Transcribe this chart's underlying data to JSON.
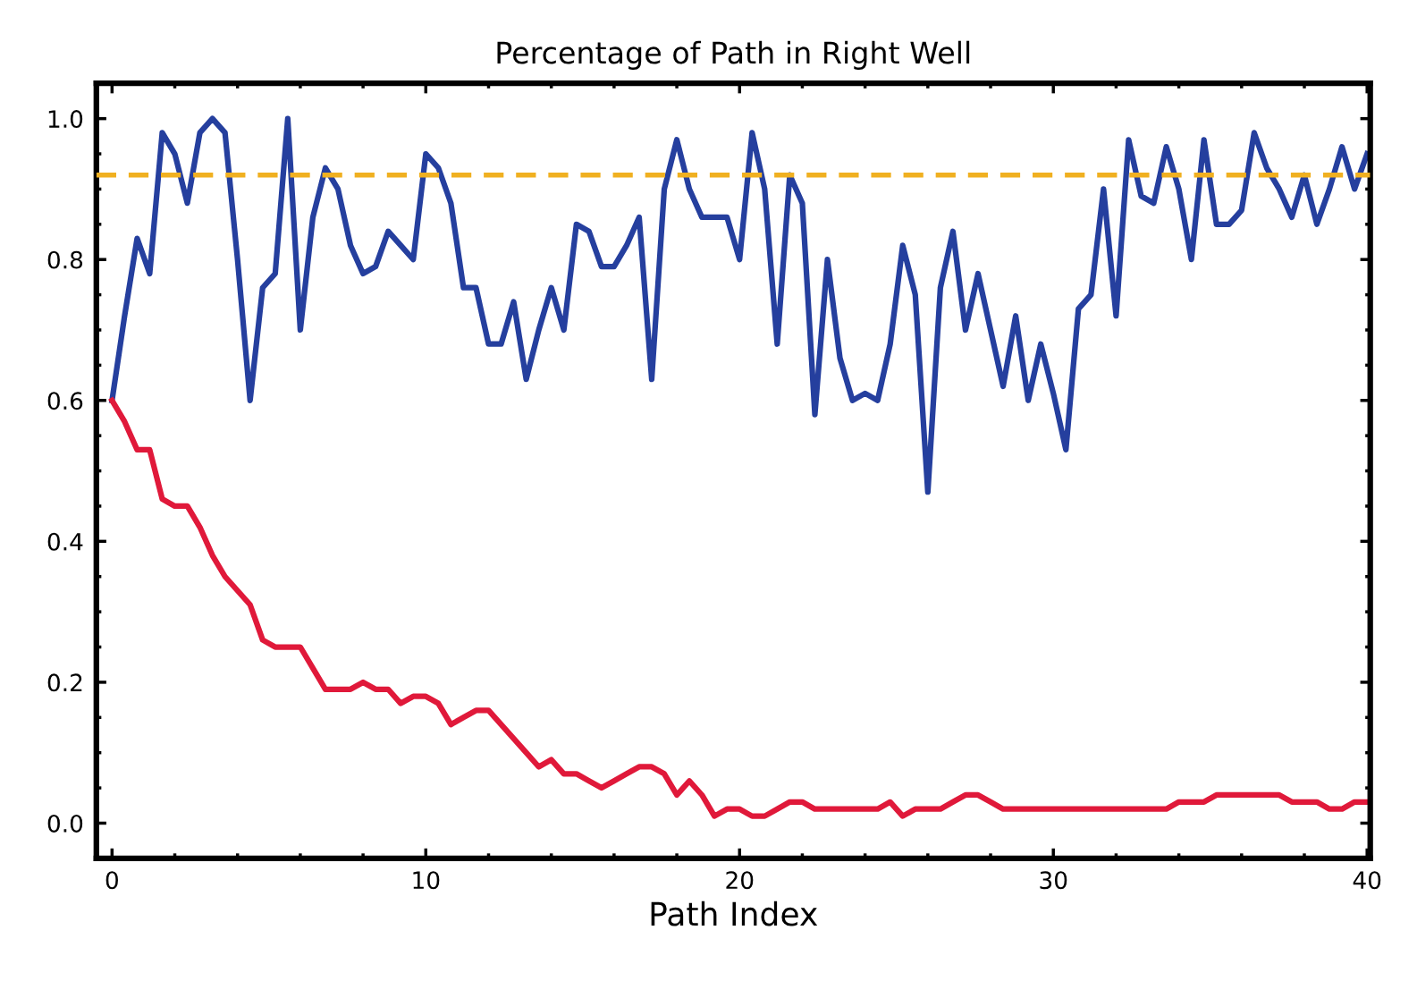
{
  "chart_data": {
    "type": "line",
    "title": "Percentage of Path in Right Well",
    "xlabel": "Path Index",
    "x": [
      0,
      0.4,
      0.8,
      1.2,
      1.6,
      2,
      2.4,
      2.8,
      3.2,
      3.6,
      4,
      4.4,
      4.8,
      5.2,
      5.6,
      6,
      6.4,
      6.8,
      7.2,
      7.6,
      8,
      8.4,
      8.8,
      9.2,
      9.6,
      10,
      10.4,
      10.8,
      11.2,
      11.6,
      12,
      12.4,
      12.8,
      13.2,
      13.6,
      14,
      14.4,
      14.8,
      15.2,
      15.6,
      16,
      16.4,
      16.8,
      17.2,
      17.6,
      18,
      18.4,
      18.8,
      19.2,
      19.6,
      20,
      20.4,
      20.8,
      21.2,
      21.6,
      22,
      22.4,
      22.8,
      23.2,
      23.6,
      24,
      24.4,
      24.8,
      25.2,
      25.6,
      26,
      26.4,
      26.8,
      27.2,
      27.6,
      28,
      28.4,
      28.8,
      29.2,
      29.6,
      30,
      30.4,
      30.8,
      31.2,
      31.6,
      32,
      32.4,
      32.8,
      33.2,
      33.6,
      34,
      34.4,
      34.8,
      35.2,
      35.6,
      36,
      36.4,
      36.8,
      37.2,
      37.6,
      38,
      38.4,
      38.8,
      39.2,
      39.6,
      40
    ],
    "series": [
      {
        "color": "#253f9e",
        "values": [
          0.6,
          0.72,
          0.83,
          0.78,
          0.98,
          0.95,
          0.88,
          0.98,
          1.0,
          0.98,
          0.8,
          0.6,
          0.76,
          0.78,
          1.0,
          0.7,
          0.86,
          0.93,
          0.9,
          0.82,
          0.78,
          0.79,
          0.84,
          0.82,
          0.8,
          0.95,
          0.93,
          0.88,
          0.76,
          0.76,
          0.68,
          0.68,
          0.74,
          0.63,
          0.7,
          0.76,
          0.7,
          0.85,
          0.84,
          0.79,
          0.79,
          0.82,
          0.86,
          0.63,
          0.9,
          0.97,
          0.9,
          0.86,
          0.86,
          0.86,
          0.8,
          0.98,
          0.9,
          0.68,
          0.92,
          0.88,
          0.58,
          0.8,
          0.66,
          0.6,
          0.61,
          0.6,
          0.68,
          0.82,
          0.75,
          0.47,
          0.76,
          0.84,
          0.7,
          0.78,
          0.7,
          0.62,
          0.72,
          0.6,
          0.68,
          0.61,
          0.53,
          0.73,
          0.75,
          0.9,
          0.72,
          0.97,
          0.89,
          0.88,
          0.96,
          0.9,
          0.8,
          0.97,
          0.85,
          0.85,
          0.87,
          0.98,
          0.93,
          0.9,
          0.86,
          0.92,
          0.85,
          0.9,
          0.96,
          0.9,
          0.95
        ]
      },
      {
        "color": "#e0193a",
        "values": [
          0.6,
          0.57,
          0.53,
          0.53,
          0.46,
          0.45,
          0.45,
          0.42,
          0.38,
          0.35,
          0.33,
          0.31,
          0.26,
          0.25,
          0.25,
          0.25,
          0.22,
          0.19,
          0.19,
          0.19,
          0.2,
          0.19,
          0.19,
          0.17,
          0.18,
          0.18,
          0.17,
          0.14,
          0.15,
          0.16,
          0.16,
          0.14,
          0.12,
          0.1,
          0.08,
          0.09,
          0.07,
          0.07,
          0.06,
          0.05,
          0.06,
          0.07,
          0.08,
          0.08,
          0.07,
          0.04,
          0.06,
          0.04,
          0.01,
          0.02,
          0.02,
          0.01,
          0.01,
          0.02,
          0.03,
          0.03,
          0.02,
          0.02,
          0.02,
          0.02,
          0.02,
          0.02,
          0.03,
          0.01,
          0.02,
          0.02,
          0.02,
          0.03,
          0.04,
          0.04,
          0.03,
          0.02,
          0.02,
          0.02,
          0.02,
          0.02,
          0.02,
          0.02,
          0.02,
          0.02,
          0.02,
          0.02,
          0.02,
          0.02,
          0.02,
          0.03,
          0.03,
          0.03,
          0.04,
          0.04,
          0.04,
          0.04,
          0.04,
          0.04,
          0.03,
          0.03,
          0.03,
          0.02,
          0.02,
          0.03,
          0.03
        ]
      }
    ],
    "ref_lines": [
      {
        "axis": "y",
        "value": 0.92,
        "color": "#f0b020",
        "line_style": "dashed"
      }
    ],
    "xlim": [
      -0.5,
      40.1
    ],
    "ylim": [
      -0.05,
      1.05
    ],
    "xticks": [
      0,
      {
        "value": 2,
        "label": null
      },
      {
        "value": 4,
        "label": null
      },
      {
        "value": 6,
        "label": null
      },
      {
        "value": 8,
        "label": null
      },
      10,
      {
        "value": 12,
        "label": null
      },
      {
        "value": 14,
        "label": null
      },
      {
        "value": 16,
        "label": null
      },
      {
        "value": 18,
        "label": null
      },
      20,
      {
        "value": 22,
        "label": null
      },
      {
        "value": 24,
        "label": null
      },
      {
        "value": 26,
        "label": null
      },
      {
        "value": 28,
        "label": null
      },
      30,
      {
        "value": 32,
        "label": null
      },
      {
        "value": 34,
        "label": null
      },
      {
        "value": 36,
        "label": null
      },
      {
        "value": 38,
        "label": null
      },
      40
    ],
    "yticks": [
      {
        "value": 0,
        "label": "0.0"
      },
      {
        "value": 0.05,
        "label": null
      },
      {
        "value": 0.1,
        "label": null
      },
      {
        "value": 0.15,
        "label": null
      },
      0.2,
      {
        "value": 0.25,
        "label": null
      },
      {
        "value": 0.3,
        "label": null
      },
      {
        "value": 0.35,
        "label": null
      },
      0.4,
      {
        "value": 0.45,
        "label": null
      },
      {
        "value": 0.5,
        "label": null
      },
      {
        "value": 0.55,
        "label": null
      },
      0.6,
      {
        "value": 0.65,
        "label": null
      },
      {
        "value": 0.7,
        "label": null
      },
      {
        "value": 0.75,
        "label": null
      },
      0.8,
      {
        "value": 0.85,
        "label": null
      },
      {
        "value": 0.9,
        "label": null
      },
      {
        "value": 0.95,
        "label": null
      },
      {
        "value": 1,
        "label": "1.0"
      }
    ],
    "grid": false,
    "legend": false,
    "marker": "none",
    "line_style": "solid"
  }
}
